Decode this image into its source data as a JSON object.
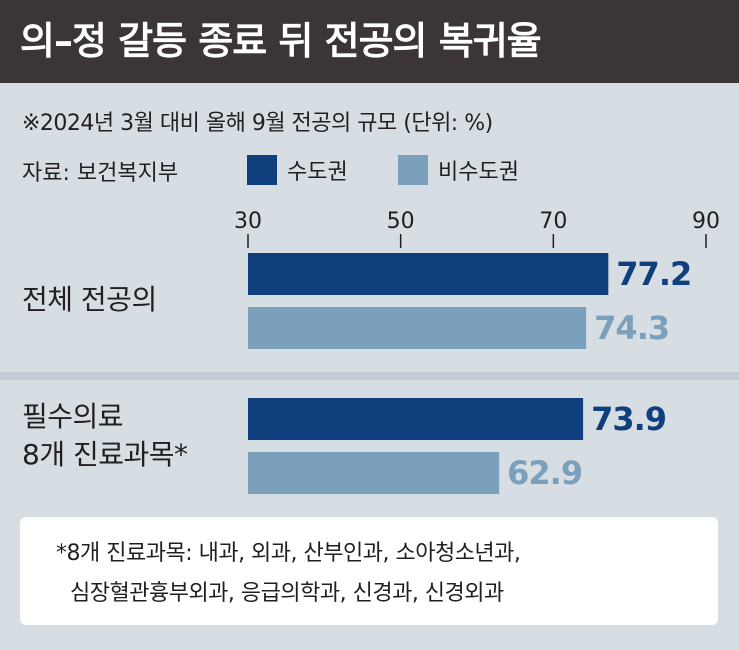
{
  "title": "의–정 갈등 종료 뒤 전공의 복귀율",
  "note": "※2024년 3월 대비 올해 9월 전공의 규모 (단위: %)",
  "source": "자료: 보건복지부",
  "colors": {
    "metro": "#0f3f7c",
    "nonmetro": "#7aa0bb",
    "header_bg": "#3b3635",
    "panel_bg": "#d6dde3"
  },
  "footnote": {
    "line1": "*8개 진료과목: 내과, 외과, 산부인과, 소아청소년과,",
    "line2": "심장혈관흉부외과, 응급의학과, 신경과, 신경외과"
  },
  "chart_data": {
    "type": "bar",
    "orientation": "horizontal",
    "categories": [
      "전체 전공의",
      "필수의료 8개 진료과목*"
    ],
    "category_lines": [
      [
        "전체 전공의"
      ],
      [
        "필수의료",
        "8개 진료과목*"
      ]
    ],
    "series": [
      {
        "name": "수도권",
        "values": [
          77.2,
          73.9
        ],
        "labels": [
          "77.2",
          "73.9"
        ],
        "color": "#0f3f7c"
      },
      {
        "name": "비수도권",
        "values": [
          74.3,
          62.9
        ],
        "labels": [
          "74.3",
          "62.9"
        ],
        "color": "#7aa0bb"
      }
    ],
    "xlim": [
      30,
      90
    ],
    "xticks": [
      30,
      50,
      70,
      90
    ],
    "xtick_labels": [
      "30",
      "50",
      "70",
      "90"
    ],
    "grid": false,
    "legend_position": "top-left"
  }
}
